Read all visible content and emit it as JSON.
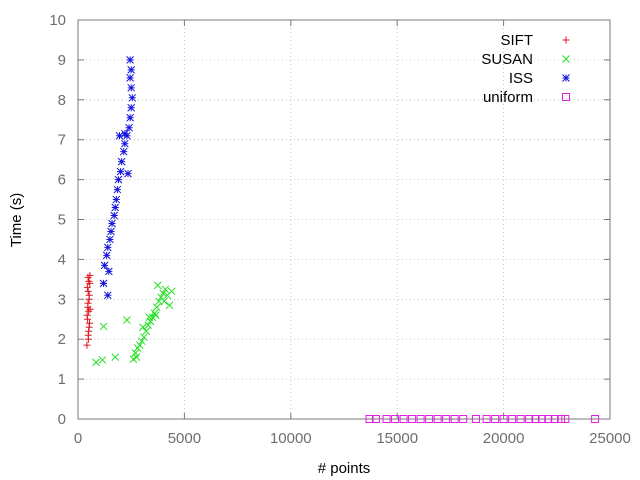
{
  "chart_data": {
    "type": "scatter",
    "title": "",
    "xlabel": "# points",
    "ylabel": "Time (s)",
    "xlim": [
      0,
      25000
    ],
    "ylim": [
      0,
      10
    ],
    "x_ticks": [
      "0",
      "5000",
      "10000",
      "15000",
      "20000",
      "25000"
    ],
    "y_ticks": [
      "0",
      "1",
      "2",
      "3",
      "4",
      "5",
      "6",
      "7",
      "8",
      "9",
      "10"
    ],
    "grid": true,
    "legend_position": "top-right",
    "series": [
      {
        "name": "SIFT",
        "color": "#e0141e",
        "marker": "plus",
        "points": [
          [
            420,
            1.85
          ],
          [
            480,
            2.1
          ],
          [
            520,
            2.3
          ],
          [
            450,
            2.5
          ],
          [
            500,
            2.7
          ],
          [
            470,
            2.9
          ],
          [
            530,
            3.1
          ],
          [
            440,
            3.3
          ],
          [
            510,
            3.45
          ],
          [
            560,
            3.6
          ],
          [
            490,
            2.0
          ],
          [
            540,
            2.4
          ],
          [
            460,
            2.8
          ],
          [
            520,
            3.0
          ],
          [
            480,
            3.2
          ],
          [
            550,
            3.4
          ],
          [
            500,
            2.2
          ],
          [
            430,
            2.6
          ],
          [
            570,
            2.75
          ],
          [
            470,
            3.55
          ]
        ]
      },
      {
        "name": "SUSAN",
        "color": "#22e022",
        "marker": "cross",
        "points": [
          [
            850,
            1.42
          ],
          [
            1150,
            1.48
          ],
          [
            1200,
            2.32
          ],
          [
            1750,
            1.55
          ],
          [
            2300,
            2.48
          ],
          [
            2600,
            1.5
          ],
          [
            2700,
            1.65
          ],
          [
            2800,
            1.78
          ],
          [
            2900,
            1.85
          ],
          [
            3000,
            1.95
          ],
          [
            3100,
            2.05
          ],
          [
            3200,
            2.2
          ],
          [
            3300,
            2.35
          ],
          [
            3400,
            2.45
          ],
          [
            3500,
            2.55
          ],
          [
            3600,
            2.65
          ],
          [
            3700,
            2.8
          ],
          [
            3800,
            2.95
          ],
          [
            3900,
            3.05
          ],
          [
            4000,
            3.15
          ],
          [
            4100,
            3.25
          ],
          [
            4200,
            3.1
          ],
          [
            4300,
            2.85
          ],
          [
            4400,
            3.2
          ],
          [
            3750,
            3.35
          ],
          [
            4050,
            2.95
          ],
          [
            3650,
            2.6
          ],
          [
            3350,
            2.55
          ],
          [
            3050,
            2.3
          ],
          [
            2750,
            1.55
          ]
        ]
      },
      {
        "name": "ISS",
        "color": "#1414e0",
        "marker": "star",
        "points": [
          [
            1200,
            3.4
          ],
          [
            1400,
            3.1
          ],
          [
            1250,
            3.85
          ],
          [
            1350,
            4.1
          ],
          [
            1400,
            4.3
          ],
          [
            1500,
            4.5
          ],
          [
            1550,
            4.7
          ],
          [
            1600,
            4.9
          ],
          [
            1700,
            5.1
          ],
          [
            1750,
            5.3
          ],
          [
            1800,
            5.5
          ],
          [
            1850,
            5.75
          ],
          [
            1900,
            6.0
          ],
          [
            2000,
            6.2
          ],
          [
            2050,
            6.45
          ],
          [
            2150,
            6.7
          ],
          [
            2200,
            6.9
          ],
          [
            2300,
            7.1
          ],
          [
            2400,
            7.3
          ],
          [
            2450,
            7.55
          ],
          [
            2500,
            7.8
          ],
          [
            2550,
            8.05
          ],
          [
            2500,
            8.3
          ],
          [
            2450,
            8.55
          ],
          [
            2500,
            8.75
          ],
          [
            2450,
            9.0
          ],
          [
            2350,
            6.15
          ],
          [
            2200,
            7.15
          ],
          [
            1950,
            7.1
          ],
          [
            1450,
            3.7
          ]
        ]
      },
      {
        "name": "uniform",
        "color": "#e020e0",
        "marker": "square",
        "points": [
          [
            13700,
            0.0
          ],
          [
            14000,
            0.0
          ],
          [
            14500,
            0.0
          ],
          [
            14900,
            0.0
          ],
          [
            15300,
            0.0
          ],
          [
            15700,
            0.0
          ],
          [
            16100,
            0.0
          ],
          [
            16500,
            0.0
          ],
          [
            16900,
            0.0
          ],
          [
            17300,
            0.0
          ],
          [
            17700,
            0.0
          ],
          [
            18100,
            0.0
          ],
          [
            18700,
            0.0
          ],
          [
            19200,
            0.0
          ],
          [
            19600,
            0.0
          ],
          [
            20000,
            0.0
          ],
          [
            20400,
            0.0
          ],
          [
            20800,
            0.0
          ],
          [
            21200,
            0.0
          ],
          [
            21500,
            0.0
          ],
          [
            21800,
            0.0
          ],
          [
            22100,
            0.0
          ],
          [
            22400,
            0.0
          ],
          [
            22700,
            0.0
          ],
          [
            22900,
            0.0
          ],
          [
            24300,
            0.0
          ]
        ]
      }
    ]
  }
}
